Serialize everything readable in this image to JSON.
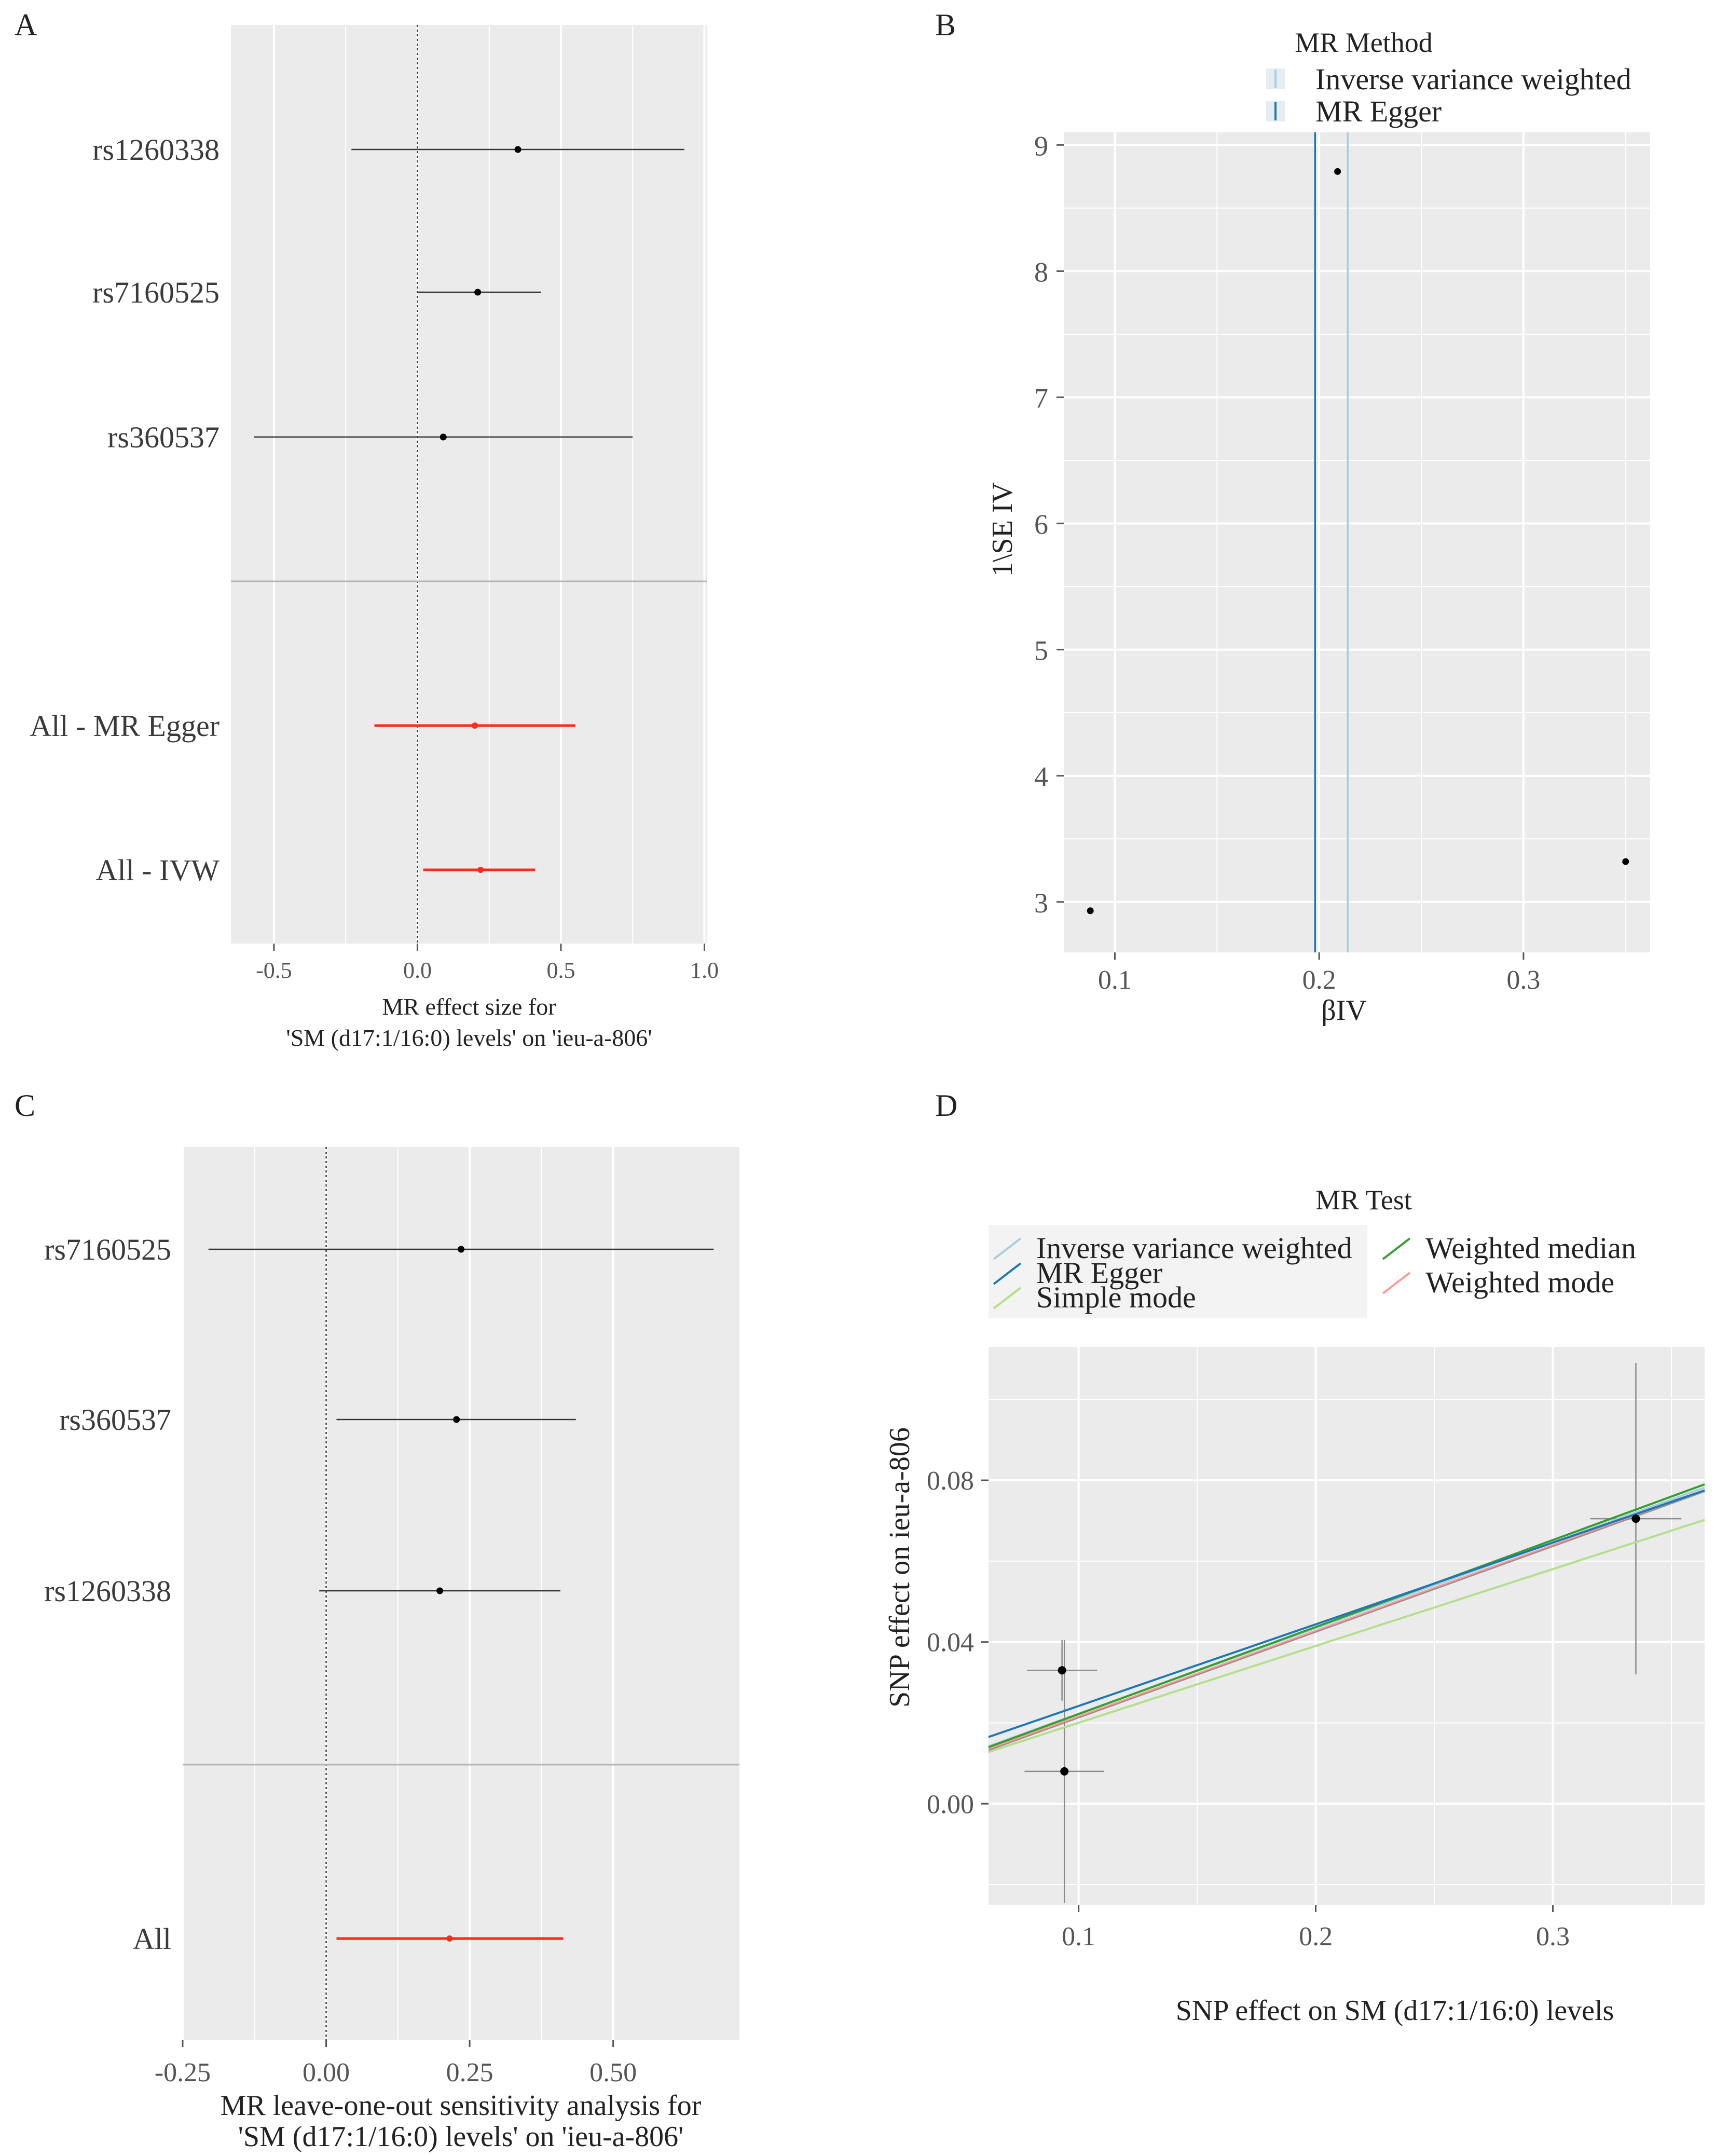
{
  "colors": {
    "panel_bg": "#ebebeb",
    "grid": "#ffffff",
    "point": "#000000",
    "summary": "#ff2a1a",
    "ivw": "#a6cee3",
    "egger": "#1f78b4",
    "simple_mode": "#b2df8a",
    "weighted_median": "#33a02c",
    "weighted_mode": "#fb9a99"
  },
  "chart_data": [
    {
      "panel": "A",
      "type": "forest",
      "xlabel_line1": "MR effect size for",
      "xlabel_line2": "'SM (d17:1/16:0) levels' on 'ieu-a-806'",
      "xlim": [
        -0.65,
        1.01
      ],
      "xticks": [
        -0.5,
        0.0,
        0.5,
        1.0
      ],
      "xtick_labels": [
        "-0.5",
        "0.0",
        "0.5",
        "1.0"
      ],
      "snps": [
        {
          "label": "rs1260338",
          "b": 0.35,
          "lo": -0.23,
          "hi": 0.93
        },
        {
          "label": "rs7160525",
          "b": 0.21,
          "lo": 0.0,
          "hi": 0.43
        },
        {
          "label": "rs360537",
          "b": 0.09,
          "lo": -0.57,
          "hi": 0.75
        }
      ],
      "summary": [
        {
          "label": "All - MR Egger",
          "b": 0.2,
          "lo": -0.15,
          "hi": 0.55
        },
        {
          "label": "All - IVW",
          "b": 0.22,
          "lo": 0.02,
          "hi": 0.41
        }
      ]
    },
    {
      "panel": "B",
      "type": "funnel",
      "legend_title": "MR Method",
      "legend_items": [
        "Inverse variance weighted",
        "MR Egger"
      ],
      "xlabel": "βIV",
      "ylabel": "1\\SE IV",
      "xlim": [
        0.075,
        0.362
      ],
      "ylim": [
        2.6,
        9.1
      ],
      "xticks": [
        0.1,
        0.2,
        0.3
      ],
      "xtick_labels": [
        "0.1",
        "0.2",
        "0.3"
      ],
      "yticks": [
        3,
        4,
        5,
        6,
        7,
        8,
        9
      ],
      "ytick_labels": [
        "3",
        "4",
        "5",
        "6",
        "7",
        "8",
        "9"
      ],
      "points": [
        {
          "x": 0.088,
          "y": 2.93
        },
        {
          "x": 0.209,
          "y": 8.79
        },
        {
          "x": 0.35,
          "y": 3.32
        }
      ],
      "vlines": [
        {
          "method": "MR Egger",
          "x": 0.198
        },
        {
          "method": "Inverse variance weighted",
          "x": 0.214
        }
      ]
    },
    {
      "panel": "C",
      "type": "forest",
      "xlabel_line1": "MR leave-one-out sensitivity analysis for",
      "xlabel_line2": "'SM (d17:1/16:0) levels' on 'ieu-a-806'",
      "xlim": [
        -0.25,
        0.72
      ],
      "xticks": [
        -0.25,
        0.0,
        0.25,
        0.5
      ],
      "xtick_labels": [
        "-0.25",
        "0.00",
        "0.25",
        "0.50"
      ],
      "snps": [
        {
          "label": "rs7160525",
          "b": 0.235,
          "lo": -0.205,
          "hi": 0.675
        },
        {
          "label": "rs360537",
          "b": 0.227,
          "lo": 0.018,
          "hi": 0.435
        },
        {
          "label": "rs1260338",
          "b": 0.198,
          "lo": -0.012,
          "hi": 0.408
        }
      ],
      "summary": [
        {
          "label": "All",
          "b": 0.215,
          "lo": 0.018,
          "hi": 0.413
        }
      ]
    },
    {
      "panel": "D",
      "type": "scatter",
      "legend_title": "MR Test",
      "legend_items": [
        "Inverse variance weighted",
        "MR Egger",
        "Simple mode",
        "Weighted median",
        "Weighted mode"
      ],
      "xlabel": "SNP effect on SM (d17:1/16:0) levels",
      "ylabel": "SNP effect on ieu-a-806",
      "xlim": [
        0.062,
        0.364
      ],
      "ylim": [
        -0.025,
        0.113
      ],
      "xticks": [
        0.1,
        0.2,
        0.3
      ],
      "xtick_labels": [
        "0.1",
        "0.2",
        "0.3"
      ],
      "yticks": [
        0.0,
        0.04,
        0.08
      ],
      "ytick_labels": [
        "0.00",
        "0.04",
        "0.08"
      ],
      "points": [
        {
          "x": 0.093,
          "y": 0.033,
          "se_x": 0.0148,
          "se_y": 0.0075
        },
        {
          "x": 0.094,
          "y": 0.008,
          "se_x": 0.0168,
          "se_y": 0.0325
        },
        {
          "x": 0.335,
          "y": 0.0705,
          "se_x": 0.0192,
          "se_y": 0.0385
        }
      ],
      "lines": [
        {
          "method": "Simple mode",
          "y0": 0.0128,
          "y1": 0.0702
        },
        {
          "method": "Weighted mode",
          "y0": 0.0135,
          "y1": 0.0775
        },
        {
          "method": "Inverse variance weighted",
          "y0": 0.0142,
          "y1": 0.0782
        },
        {
          "method": "Weighted median",
          "y0": 0.014,
          "y1": 0.079
        },
        {
          "method": "MR Egger",
          "y0": 0.0165,
          "y1": 0.0775
        }
      ]
    }
  ]
}
